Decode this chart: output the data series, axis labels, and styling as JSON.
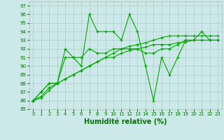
{
  "title": "",
  "xlabel": "Humidité relative (%)",
  "ylabel": "",
  "background_color": "#cce8e8",
  "grid_color": "#aacccc",
  "line_color": "#00aa00",
  "marker": "+",
  "xlim": [
    -0.5,
    23.5
  ],
  "ylim": [
    85,
    97.5
  ],
  "yticks": [
    85,
    86,
    87,
    88,
    89,
    90,
    91,
    92,
    93,
    94,
    95,
    96,
    97
  ],
  "xticks": [
    0,
    1,
    2,
    3,
    4,
    5,
    6,
    7,
    8,
    9,
    10,
    11,
    12,
    13,
    14,
    15,
    16,
    17,
    18,
    19,
    20,
    21,
    22,
    23
  ],
  "series": [
    [
      86,
      87,
      88,
      88,
      92,
      91,
      90,
      96,
      94,
      94,
      94,
      93,
      96,
      94,
      90,
      86,
      91,
      89,
      91,
      93,
      93,
      94,
      93,
      93
    ],
    [
      86,
      87,
      88,
      88,
      91,
      91,
      91,
      92,
      91.5,
      91.5,
      92,
      92,
      92,
      92,
      91.5,
      91.5,
      92,
      92,
      92.5,
      93,
      93,
      93,
      93,
      93
    ],
    [
      86,
      86.5,
      87.5,
      88,
      88.5,
      89,
      89.5,
      90,
      90.5,
      91,
      91,
      91.5,
      91.8,
      92,
      92.2,
      92.5,
      92.5,
      92.5,
      92.7,
      92.8,
      93,
      93,
      93,
      93
    ],
    [
      86,
      86.3,
      87.2,
      88,
      88.5,
      89,
      89.5,
      90,
      90.5,
      91,
      91.5,
      92,
      92.3,
      92.5,
      92.7,
      93,
      93.3,
      93.5,
      93.5,
      93.5,
      93.5,
      93.5,
      93.5,
      93.5
    ]
  ],
  "xlabel_fontsize": 7,
  "tick_fontsize": 5,
  "linewidth": 0.8,
  "markersize": 3.5,
  "markeredgewidth": 0.9
}
